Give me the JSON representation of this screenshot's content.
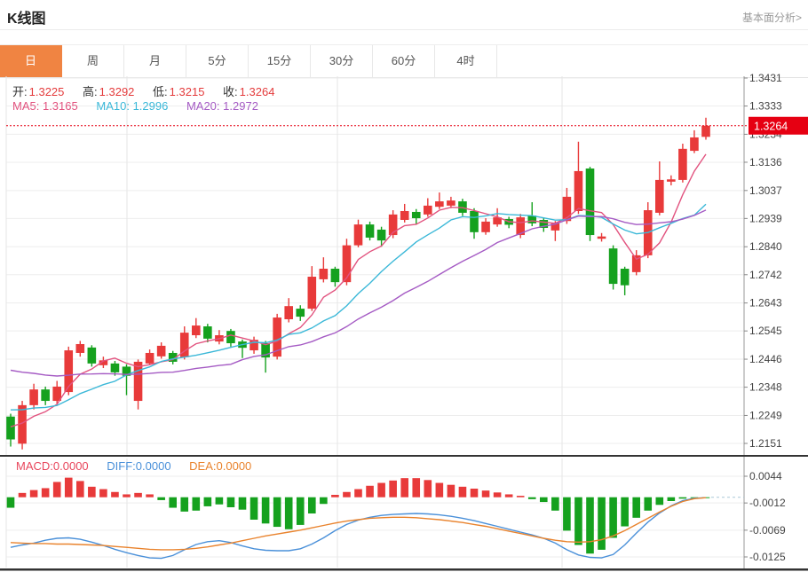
{
  "header": {
    "title": "K线图",
    "link": "基本面分析>"
  },
  "tabs": {
    "items": [
      "日",
      "周",
      "月",
      "5分",
      "15分",
      "30分",
      "60分",
      "4时"
    ],
    "active_index": 0
  },
  "legend": {
    "ohlc": [
      {
        "label": "开:",
        "value": "1.3225"
      },
      {
        "label": "高:",
        "value": "1.3292"
      },
      {
        "label": "低:",
        "value": "1.3215"
      },
      {
        "label": "收:",
        "value": "1.3264"
      }
    ],
    "ma": [
      {
        "label": "MA5:",
        "value": "1.3165",
        "color": "#e2537f"
      },
      {
        "label": "MA10:",
        "value": "1.2996",
        "color": "#3bb8d8"
      },
      {
        "label": "MA20:",
        "value": "1.2972",
        "color": "#a55bc4"
      }
    ]
  },
  "macd_legend": [
    {
      "label": "MACD:",
      "value": "0.0000",
      "color": "#e8465c"
    },
    {
      "label": "DIFF:",
      "value": "0.0000",
      "color": "#4a90d9"
    },
    {
      "label": "DEA:",
      "value": "0.0000",
      "color": "#e9832d"
    }
  ],
  "colors": {
    "accent_tab": "#f08442",
    "candle_up": "#e83a3a",
    "candle_down": "#15a11e",
    "badge": "#e60012",
    "ma5": "#e2537f",
    "ma10": "#3bb8d8",
    "ma20": "#a55bc4",
    "diff": "#4a90d9",
    "dea": "#e9832d",
    "grid": "#ededed",
    "vgrid": "#e6e6e6",
    "axis": "#999999",
    "axis_text": "#444444",
    "separator": "#333333",
    "zero_dash": "#a9c7d8"
  },
  "chart_data": {
    "type": "candlestick+macd",
    "title": "K线图 daily candlestick chart with MACD",
    "price_axis": {
      "ticks": [
        1.3431,
        1.3333,
        1.3234,
        1.3136,
        1.3037,
        1.2939,
        1.284,
        1.2742,
        1.2643,
        1.2545,
        1.2446,
        1.2348,
        1.2249,
        1.2151
      ],
      "current_price": 1.3264
    },
    "candles_format": [
      "open",
      "close",
      "low",
      "high"
    ],
    "candles": [
      [
        1.2245,
        1.2165,
        1.214,
        1.2255
      ],
      [
        1.215,
        1.2285,
        1.213,
        1.23
      ],
      [
        1.2285,
        1.234,
        1.227,
        1.236
      ],
      [
        1.234,
        1.23,
        1.2285,
        1.235
      ],
      [
        1.23,
        1.235,
        1.229,
        1.237
      ],
      [
        1.2331,
        1.2477,
        1.232,
        1.249
      ],
      [
        1.2468,
        1.2499,
        1.2455,
        1.251
      ],
      [
        1.2487,
        1.2431,
        1.242,
        1.2495
      ],
      [
        1.2425,
        1.2442,
        1.2415,
        1.2455
      ],
      [
        1.2431,
        1.24,
        1.2388,
        1.244
      ],
      [
        1.242,
        1.2388,
        1.232,
        1.2428
      ],
      [
        1.23,
        1.2437,
        1.227,
        1.2445
      ],
      [
        1.2431,
        1.2468,
        1.2425,
        1.248
      ],
      [
        1.2456,
        1.2493,
        1.2448,
        1.2505
      ],
      [
        1.2468,
        1.2437,
        1.2428,
        1.2475
      ],
      [
        1.2453,
        1.2539,
        1.2445,
        1.2561
      ],
      [
        1.253,
        1.2564,
        1.252,
        1.259
      ],
      [
        1.2561,
        1.2518,
        1.2505,
        1.257
      ],
      [
        1.2508,
        1.253,
        1.2498,
        1.2548
      ],
      [
        1.2545,
        1.2502,
        1.249,
        1.2552
      ],
      [
        1.2508,
        1.2486,
        1.245,
        1.2515
      ],
      [
        1.2477,
        1.2514,
        1.2465,
        1.2525
      ],
      [
        1.2502,
        1.2452,
        1.2399,
        1.251
      ],
      [
        1.2455,
        1.2592,
        1.2445,
        1.2605
      ],
      [
        1.2586,
        1.2632,
        1.2575,
        1.266
      ],
      [
        1.2623,
        1.2595,
        1.258,
        1.2635
      ],
      [
        1.2623,
        1.2735,
        1.2615,
        1.2772
      ],
      [
        1.2726,
        1.2763,
        1.2715,
        1.2803
      ],
      [
        1.2763,
        1.2716,
        1.27,
        1.277
      ],
      [
        1.2716,
        1.2845,
        1.2705,
        1.2868
      ],
      [
        1.2845,
        1.2918,
        1.2838,
        1.2935
      ],
      [
        1.2918,
        1.2872,
        1.2862,
        1.2928
      ],
      [
        1.29,
        1.2862,
        1.284,
        1.291
      ],
      [
        1.2881,
        1.2953,
        1.287,
        1.2968
      ],
      [
        1.2934,
        1.2965,
        1.2925,
        1.299
      ],
      [
        1.2962,
        1.294,
        1.2918,
        1.2972
      ],
      [
        1.2953,
        1.2984,
        1.2945,
        1.301
      ],
      [
        1.298,
        1.2999,
        1.2972,
        1.303
      ],
      [
        1.2984,
        1.3002,
        1.2975,
        1.3015
      ],
      [
        1.2999,
        1.2959,
        1.2948,
        1.3008
      ],
      [
        1.2965,
        1.2891,
        1.2868,
        1.2975
      ],
      [
        1.2891,
        1.2928,
        1.2882,
        1.294
      ],
      [
        1.2918,
        1.2943,
        1.291,
        1.2975
      ],
      [
        1.2937,
        1.2917,
        1.2905,
        1.2945
      ],
      [
        1.2881,
        1.2943,
        1.287,
        1.2955
      ],
      [
        1.2949,
        1.2922,
        1.2912,
        1.2996
      ],
      [
        1.2934,
        1.2906,
        1.2892,
        1.294
      ],
      [
        1.2897,
        1.2922,
        1.286,
        1.293
      ],
      [
        1.293,
        1.3015,
        1.292,
        1.3046
      ],
      [
        1.2965,
        1.3105,
        1.2955,
        1.3208
      ],
      [
        1.3114,
        1.2881,
        1.286,
        1.312
      ],
      [
        1.2868,
        1.2876,
        1.2858,
        1.2888
      ],
      [
        1.2834,
        1.271,
        1.269,
        1.2845
      ],
      [
        1.2763,
        1.2705,
        1.267,
        1.277
      ],
      [
        1.2751,
        1.281,
        1.274,
        1.2828
      ],
      [
        1.281,
        1.2968,
        1.28,
        1.2996
      ],
      [
        1.2959,
        1.3074,
        1.295,
        1.3139
      ],
      [
        1.3068,
        1.3076,
        1.3055,
        1.309
      ],
      [
        1.3074,
        1.3183,
        1.3065,
        1.3201
      ],
      [
        1.3176,
        1.3223,
        1.3168,
        1.3248
      ],
      [
        1.3225,
        1.3264,
        1.3215,
        1.3292
      ]
    ],
    "ma_lines": [
      {
        "name": "MA5",
        "period": 5,
        "seed": 1.222,
        "last_value": 1.3165
      },
      {
        "name": "MA10",
        "period": 10,
        "seed": 1.228,
        "last_value": 1.2996
      },
      {
        "name": "MA20",
        "period": 20,
        "seed": 1.242,
        "last_value": 1.2972
      }
    ],
    "macd": {
      "axis_ticks": [
        0.0044,
        -0.0012,
        -0.0069,
        -0.0125
      ],
      "histogram": [
        -0.0022,
        0.0009,
        0.0015,
        0.0019,
        0.0032,
        0.0041,
        0.0034,
        0.0022,
        0.0017,
        0.0011,
        0.0006,
        0.0009,
        0.0006,
        -0.0006,
        -0.0022,
        -0.003,
        -0.0028,
        -0.0019,
        -0.0015,
        -0.0021,
        -0.0026,
        -0.0047,
        -0.0055,
        -0.0062,
        -0.0067,
        -0.0058,
        -0.0034,
        -0.0014,
        0.0005,
        0.0011,
        0.0017,
        0.0024,
        0.003,
        0.0035,
        0.004,
        0.004,
        0.0036,
        0.003,
        0.0026,
        0.0022,
        0.0018,
        0.0014,
        0.001,
        0.0006,
        0.0003,
        -0.0004,
        -0.001,
        -0.0028,
        -0.007,
        -0.01,
        -0.0118,
        -0.011,
        -0.0085,
        -0.0061,
        -0.0043,
        -0.0028,
        -0.0016,
        -0.0008,
        -0.0003,
        -0.0001,
        -0.0001
      ],
      "diff": [
        -0.0105,
        -0.01,
        -0.0096,
        -0.009,
        -0.0086,
        -0.0085,
        -0.0088,
        -0.0094,
        -0.0101,
        -0.0109,
        -0.0116,
        -0.0122,
        -0.0127,
        -0.0128,
        -0.0122,
        -0.011,
        -0.0099,
        -0.0093,
        -0.0091,
        -0.0095,
        -0.0102,
        -0.0108,
        -0.0111,
        -0.0112,
        -0.0112,
        -0.0108,
        -0.0098,
        -0.0085,
        -0.007,
        -0.0057,
        -0.0048,
        -0.0042,
        -0.0038,
        -0.0036,
        -0.0035,
        -0.0034,
        -0.0035,
        -0.0037,
        -0.004,
        -0.0044,
        -0.0049,
        -0.0055,
        -0.0061,
        -0.0067,
        -0.0073,
        -0.0079,
        -0.0086,
        -0.0096,
        -0.011,
        -0.0121,
        -0.0126,
        -0.0127,
        -0.012,
        -0.01,
        -0.0075,
        -0.0052,
        -0.0033,
        -0.0018,
        -0.0007,
        -0.0002,
        -0.0001
      ],
      "dea": [
        -0.0095,
        -0.0096,
        -0.0097,
        -0.0097,
        -0.0098,
        -0.0098,
        -0.0099,
        -0.01,
        -0.0101,
        -0.0103,
        -0.0105,
        -0.0107,
        -0.0109,
        -0.011,
        -0.011,
        -0.0109,
        -0.0107,
        -0.0104,
        -0.01,
        -0.0096,
        -0.0091,
        -0.0086,
        -0.0081,
        -0.0077,
        -0.0073,
        -0.0069,
        -0.0064,
        -0.0059,
        -0.0054,
        -0.005,
        -0.0047,
        -0.0044,
        -0.0043,
        -0.0042,
        -0.0042,
        -0.0043,
        -0.0045,
        -0.0047,
        -0.005,
        -0.0053,
        -0.0057,
        -0.0061,
        -0.0066,
        -0.0071,
        -0.0076,
        -0.0081,
        -0.0086,
        -0.009,
        -0.0093,
        -0.0094,
        -0.0093,
        -0.0089,
        -0.0081,
        -0.007,
        -0.0057,
        -0.0044,
        -0.0031,
        -0.0019,
        -0.0009,
        -0.0003,
        -0.0001
      ]
    }
  }
}
